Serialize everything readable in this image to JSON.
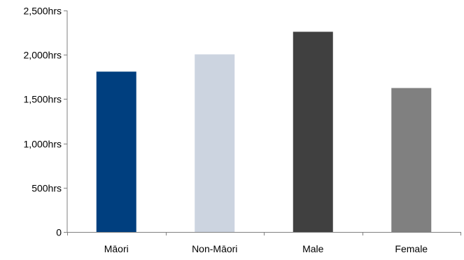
{
  "chart_data": {
    "type": "bar",
    "categories": [
      "Māori",
      "Non-Māori",
      "Male",
      "Female"
    ],
    "values": [
      1810,
      2005,
      2260,
      1625
    ],
    "colors": [
      "#003F7F",
      "#CCD4E0",
      "#404040",
      "#808080"
    ],
    "yticks": [
      0,
      500,
      1000,
      1500,
      2000,
      2500
    ],
    "ytick_labels": [
      "0",
      "500hrs",
      "1,000hrs",
      "1,500hrs",
      "2,000hrs",
      "2,500hrs"
    ],
    "ylim": [
      0,
      2500
    ],
    "grid": false,
    "legend": "none",
    "title": "",
    "xlabel": "",
    "ylabel": ""
  }
}
